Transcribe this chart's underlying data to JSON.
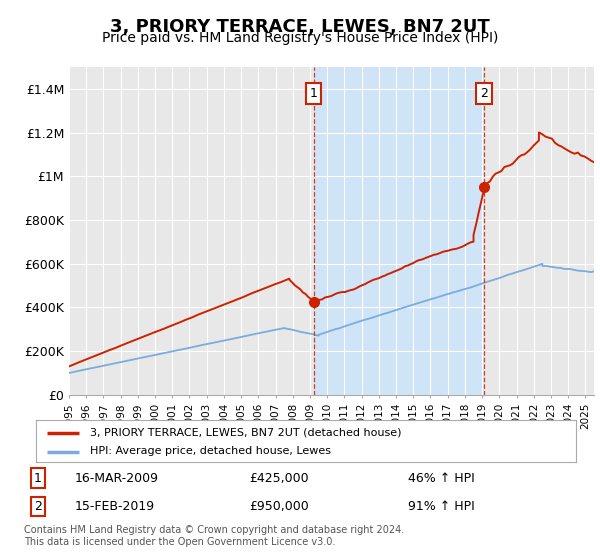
{
  "title": "3, PRIORY TERRACE, LEWES, BN7 2UT",
  "subtitle": "Price paid vs. HM Land Registry's House Price Index (HPI)",
  "title_fontsize": 13,
  "subtitle_fontsize": 10,
  "ylabel_ticks": [
    "£0",
    "£200K",
    "£400K",
    "£600K",
    "£800K",
    "£1M",
    "£1.2M",
    "£1.4M"
  ],
  "ytick_values": [
    0,
    200000,
    400000,
    600000,
    800000,
    1000000,
    1200000,
    1400000
  ],
  "ylim": [
    0,
    1500000
  ],
  "xlim_start": 1995.0,
  "xlim_end": 2025.5,
  "background_color": "#ffffff",
  "plot_bg_color": "#e8e8e8",
  "highlight_color": "#d0e4f7",
  "grid_color": "#ffffff",
  "red_line_color": "#cc2200",
  "blue_line_color": "#7aace0",
  "transaction1_x": 2009.21,
  "transaction1_y": 425000,
  "transaction2_x": 2019.12,
  "transaction2_y": 950000,
  "legend_red_label": "3, PRIORY TERRACE, LEWES, BN7 2UT (detached house)",
  "legend_blue_label": "HPI: Average price, detached house, Lewes",
  "sale1_num": "1",
  "sale1_date": "16-MAR-2009",
  "sale1_price": "£425,000",
  "sale1_hpi": "46% ↑ HPI",
  "sale2_num": "2",
  "sale2_date": "15-FEB-2019",
  "sale2_price": "£950,000",
  "sale2_hpi": "91% ↑ HPI",
  "footer": "Contains HM Land Registry data © Crown copyright and database right 2024.\nThis data is licensed under the Open Government Licence v3.0.",
  "xtick_years": [
    1995,
    1996,
    1997,
    1998,
    1999,
    2000,
    2001,
    2002,
    2003,
    2004,
    2005,
    2006,
    2007,
    2008,
    2009,
    2010,
    2011,
    2012,
    2013,
    2014,
    2015,
    2016,
    2017,
    2018,
    2019,
    2020,
    2021,
    2022,
    2023,
    2024,
    2025
  ]
}
